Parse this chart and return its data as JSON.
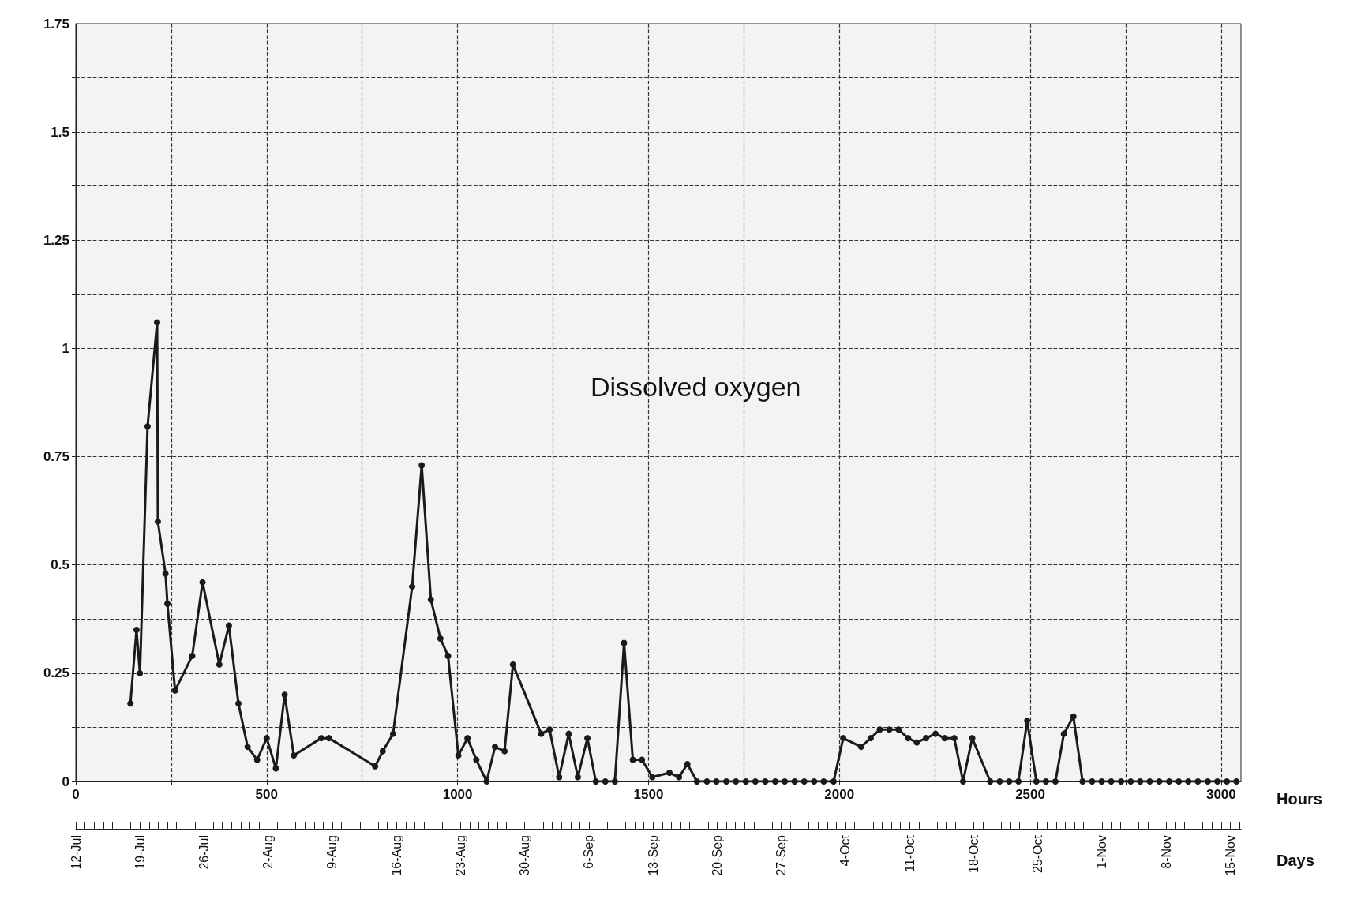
{
  "chart_data": {
    "type": "line",
    "title": "Dissolved oxygen",
    "xlabel": "Hours",
    "x2label": "Days",
    "color": "#1a1a1a",
    "marker": "circle",
    "line_style": "solid",
    "grid": true,
    "x": [
      143,
      159,
      168,
      188,
      213,
      215,
      235,
      240,
      260,
      305,
      332,
      376,
      401,
      426,
      450,
      475,
      500,
      524,
      547,
      571,
      643,
      663,
      784,
      804,
      831,
      881,
      906,
      930,
      955,
      975,
      1002,
      1026,
      1049,
      1076,
      1098,
      1123,
      1145,
      1219,
      1241,
      1266,
      1291,
      1315,
      1340,
      1362,
      1387,
      1412,
      1436,
      1459,
      1483,
      1510,
      1555,
      1580,
      1602,
      1627,
      1653,
      1678,
      1704,
      1729,
      1755,
      1780,
      1806,
      1832,
      1857,
      1883,
      1908,
      1934,
      1959,
      1985,
      2010,
      2057,
      2082,
      2106,
      2131,
      2155,
      2180,
      2203,
      2227,
      2252,
      2276,
      2301,
      2324,
      2348,
      2395,
      2420,
      2445,
      2469,
      2492,
      2516,
      2541,
      2566,
      2588,
      2613,
      2637,
      2662,
      2687,
      2712,
      2738,
      2763,
      2788,
      2813,
      2838,
      2864,
      2889,
      2914,
      2939,
      2965,
      2990,
      3015,
      3040
    ],
    "values": [
      0.18,
      0.35,
      0.25,
      0.82,
      1.06,
      0.6,
      0.48,
      0.41,
      0.21,
      0.29,
      0.46,
      0.27,
      0.36,
      0.18,
      0.08,
      0.05,
      0.1,
      0.03,
      0.2,
      0.06,
      0.1,
      0.1,
      0.035,
      0.07,
      0.11,
      0.45,
      0.73,
      0.42,
      0.33,
      0.29,
      0.06,
      0.1,
      0.05,
      0,
      0.08,
      0.07,
      0.27,
      0.11,
      0.12,
      0.01,
      0.11,
      0.01,
      0.1,
      0,
      0,
      0,
      0.32,
      0.05,
      0.05,
      0.01,
      0.02,
      0.01,
      0.04,
      0,
      0,
      0,
      0,
      0,
      0,
      0,
      0,
      0,
      0,
      0,
      0,
      0,
      0,
      0,
      0.1,
      0.08,
      0.1,
      0.12,
      0.12,
      0.12,
      0.1,
      0.09,
      0.1,
      0.11,
      0.1,
      0.1,
      0,
      0.1,
      0,
      0,
      0,
      0,
      0.14,
      0,
      0,
      0,
      0.11,
      0.15,
      0,
      0,
      0,
      0,
      0,
      0,
      0,
      0,
      0,
      0,
      0,
      0,
      0,
      0,
      0,
      0,
      0
    ],
    "xlim": [
      0,
      3052
    ],
    "xticks": [
      0,
      {
        "value": 250,
        "label": null
      },
      500,
      {
        "value": 750,
        "label": null
      },
      1000,
      {
        "value": 1250,
        "label": null
      },
      1500,
      {
        "value": 1750,
        "label": null
      },
      2000,
      {
        "value": 2250,
        "label": null
      },
      2500,
      {
        "value": 2750,
        "label": null
      },
      3000
    ],
    "ylim": [
      0,
      1.75
    ],
    "yticks": [
      0,
      {
        "value": 0.125,
        "label": null
      },
      0.25,
      {
        "value": 0.375,
        "label": null
      },
      0.5,
      {
        "value": 0.625,
        "label": null
      },
      0.75,
      {
        "value": 0.875,
        "label": null
      },
      1,
      {
        "value": 1.125,
        "label": null
      },
      1.25,
      {
        "value": 1.375,
        "label": null
      },
      1.5,
      {
        "value": 1.625,
        "label": null
      },
      1.75
    ],
    "x2lim": [
      "--07-12",
      "--11-16T04:00"
    ],
    "x2ticks": [
      {
        "value": "--07-12",
        "label": "12-Jul"
      },
      {
        "value": "--07-19",
        "label": "19-Jul"
      },
      {
        "value": "--07-26",
        "label": "26-Jul"
      },
      {
        "value": "--08-02",
        "label": "2-Aug"
      },
      {
        "value": "--08-09",
        "label": "9-Aug"
      },
      {
        "value": "--08-16",
        "label": "16-Aug"
      },
      {
        "value": "--08-23",
        "label": "23-Aug"
      },
      {
        "value": "--08-30",
        "label": "30-Aug"
      },
      {
        "value": "--09-06",
        "label": "6-Sep"
      },
      {
        "value": "--09-13",
        "label": "13-Sep"
      },
      {
        "value": "--09-20",
        "label": "20-Sep"
      },
      {
        "value": "--09-27",
        "label": "27-Sep"
      },
      {
        "value": "--10-04",
        "label": "4-Oct"
      },
      {
        "value": "--10-11",
        "label": "11-Oct"
      },
      {
        "value": "--10-18",
        "label": "18-Oct"
      },
      {
        "value": "--10-25",
        "label": "25-Oct"
      },
      {
        "value": "--11-01",
        "label": "1-Nov"
      },
      {
        "value": "--11-08",
        "label": "8-Nov"
      },
      {
        "value": "--11-15",
        "label": "15-Nov"
      }
    ]
  }
}
